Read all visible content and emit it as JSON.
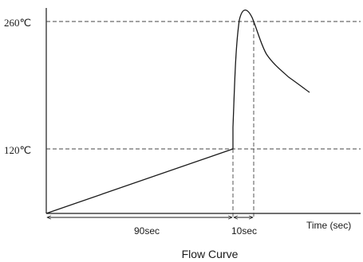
{
  "diagram": {
    "y_labels": {
      "t260": "260℃",
      "t120": "120℃"
    },
    "x_labels": {
      "d90": "90sec",
      "d10": "10sec",
      "axis": "Time (sec)"
    },
    "caption": "Flow Curve"
  }
}
